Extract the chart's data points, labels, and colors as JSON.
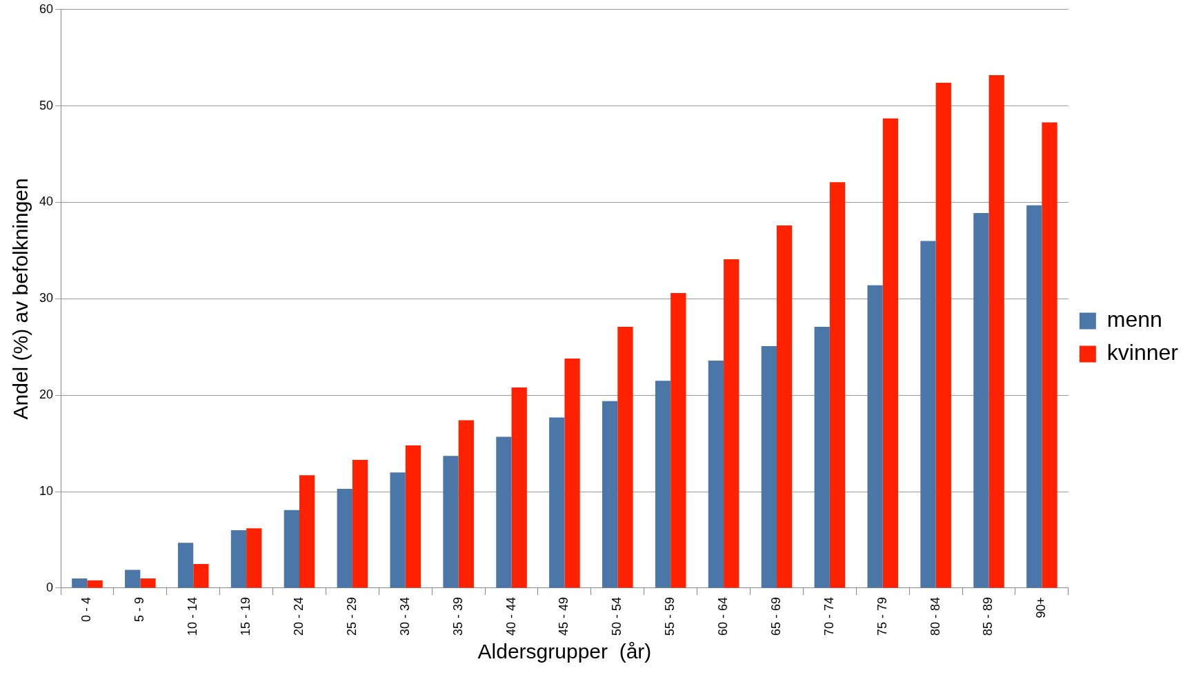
{
  "chart_data": {
    "type": "bar",
    "xlabel": "Aldersgrupper  (år)",
    "ylabel": "Andel (%) av befolkningen",
    "categories": [
      "0 - 4",
      "5 - 9",
      "10 - 14",
      "15 - 19",
      "20 - 24",
      "25 - 29",
      "30 - 34",
      "35 - 39",
      "40 - 44",
      "45 - 49",
      "50 - 54",
      "55 - 59",
      "60 - 64",
      "65 - 69",
      "70 - 74",
      "75 - 79",
      "80 - 84",
      "85 - 89",
      "90+"
    ],
    "series": [
      {
        "name": "menn",
        "color": "#4a76a8",
        "values": [
          1.0,
          1.9,
          4.7,
          6.0,
          8.1,
          10.3,
          12.0,
          13.7,
          15.7,
          17.7,
          19.4,
          21.5,
          23.6,
          25.1,
          27.1,
          31.4,
          36.0,
          38.9,
          39.7
        ]
      },
      {
        "name": "kvinner",
        "color": "#ff2200",
        "values": [
          0.8,
          1.0,
          2.5,
          6.2,
          11.7,
          13.3,
          14.8,
          17.4,
          20.8,
          23.8,
          27.1,
          30.6,
          34.1,
          37.6,
          42.1,
          48.7,
          52.4,
          53.2,
          48.3
        ]
      }
    ],
    "ylim": [
      0,
      60
    ],
    "yticks": [
      0,
      10,
      20,
      30,
      40,
      50,
      60
    ],
    "grid": "y",
    "legend": "right"
  }
}
